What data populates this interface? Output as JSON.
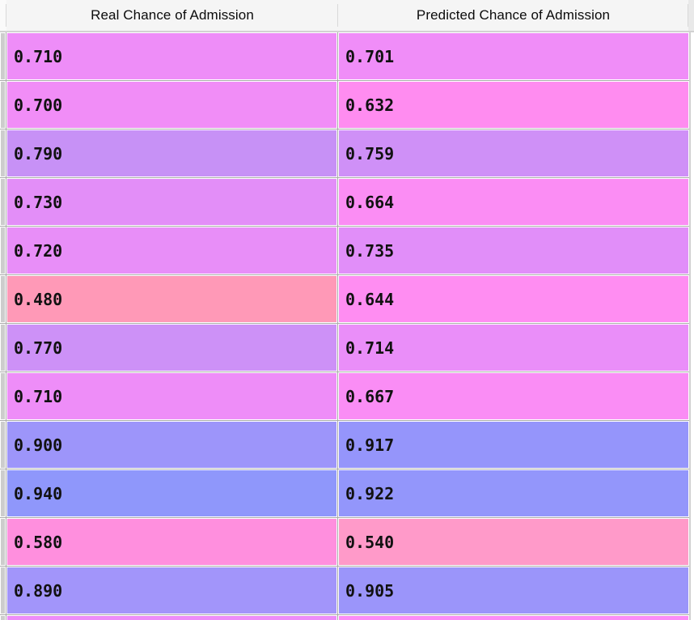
{
  "header": {
    "columns": [
      {
        "label": "Real Chance of Admission"
      },
      {
        "label": "Predicted Chance of Admission"
      }
    ]
  },
  "colors": {
    "header_bg": "#F5F5F5",
    "header_corner_bg": "#E9E9E9",
    "header_divider": "#D9D9D9",
    "grid_line": "#ABABAB",
    "cell_border": "#FFFFFF",
    "row_index_bg": "#CDCDCD",
    "text": "#111111",
    "low_value": "#FF99B7",
    "mid_value": "#EE8DF8",
    "high_value": "#8F97FB"
  },
  "rows": [
    {
      "real": "0.710",
      "predicted": "0.701",
      "real_bg": "#EE8DF8",
      "predicted_bg": "#F08DF8"
    },
    {
      "real": "0.700",
      "predicted": "0.632",
      "real_bg": "#F18DF7",
      "predicted_bg": "#FF8CF0"
    },
    {
      "real": "0.790",
      "predicted": "0.759",
      "real_bg": "#C791F6",
      "predicted_bg": "#CF90F7"
    },
    {
      "real": "0.730",
      "predicted": "0.664",
      "real_bg": "#E38EF8",
      "predicted_bg": "#FB8DF4"
    },
    {
      "real": "0.720",
      "predicted": "0.735",
      "real_bg": "#E88EF8",
      "predicted_bg": "#E18EF9"
    },
    {
      "real": "0.480",
      "predicted": "0.644",
      "real_bg": "#FF99B7",
      "predicted_bg": "#FF8DF2"
    },
    {
      "real": "0.770",
      "predicted": "0.714",
      "real_bg": "#CD91F7",
      "predicted_bg": "#EA8EF9"
    },
    {
      "real": "0.710",
      "predicted": "0.667",
      "real_bg": "#EE8DF8",
      "predicted_bg": "#FA8DF5"
    },
    {
      "real": "0.900",
      "predicted": "0.917",
      "real_bg": "#9D95FA",
      "predicted_bg": "#9595FB"
    },
    {
      "real": "0.940",
      "predicted": "0.922",
      "real_bg": "#8F97FB",
      "predicted_bg": "#9396FB"
    },
    {
      "real": "0.580",
      "predicted": "0.540",
      "real_bg": "#FF8FDE",
      "predicted_bg": "#FF9AC9"
    },
    {
      "real": "0.890",
      "predicted": "0.905",
      "real_bg": "#A295FA",
      "predicted_bg": "#9B95FA"
    }
  ],
  "partial_row": {
    "real_bg": "#ED8DF8",
    "predicted_bg": "#FC8DF6"
  }
}
